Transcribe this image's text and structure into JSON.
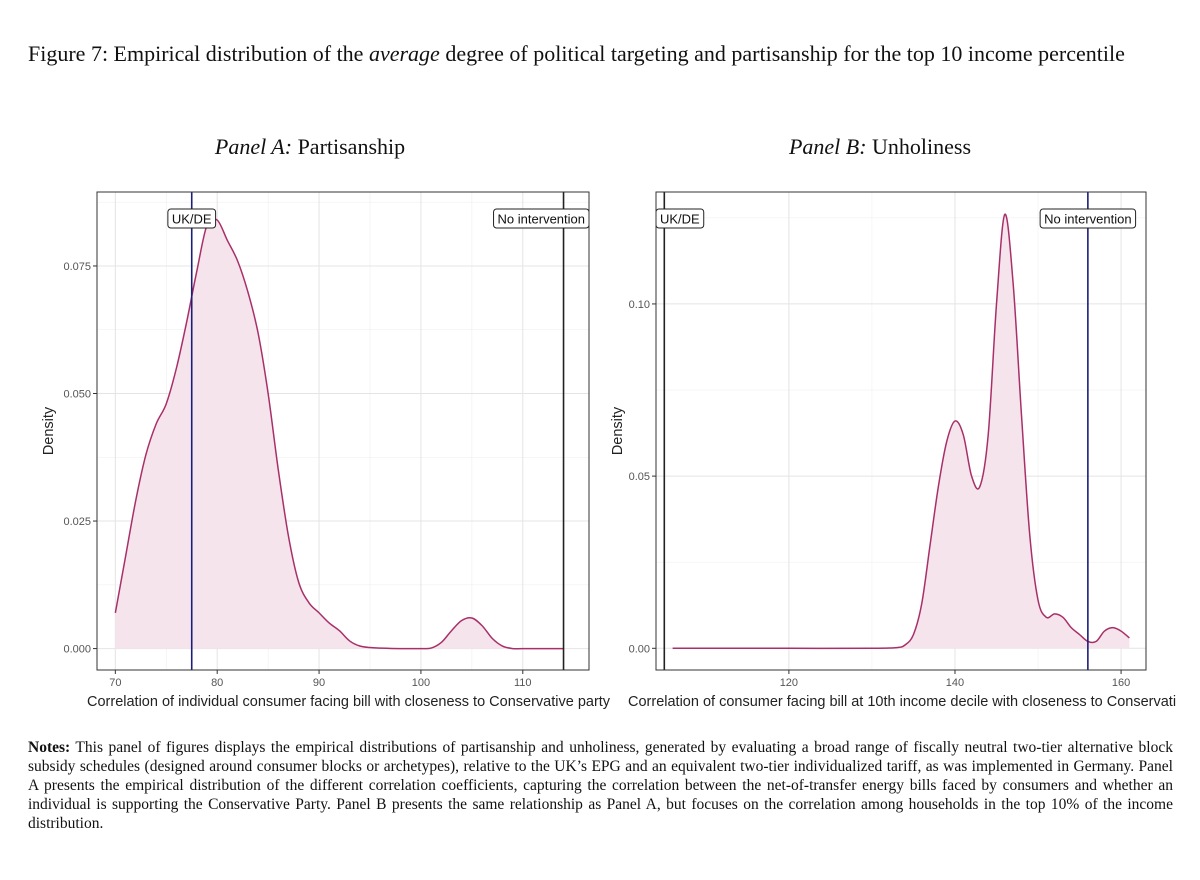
{
  "caption": {
    "prefix": "Figure 7: Empirical distribution of the ",
    "emph": "average",
    "suffix": " degree of political targeting and partisanship for the top 10 income percentile"
  },
  "panelA": {
    "label": "Panel A:",
    "title": "Partisanship"
  },
  "panelB": {
    "label": "Panel B:",
    "title": "Unholiness"
  },
  "notes": {
    "label": "Notes:",
    "text": " This panel of figures displays the empirical distributions of partisanship and unholiness, generated by evaluating a broad range of fiscally neutral two-tier alternative block subsidy schedules (designed around consumer blocks or archetypes), relative to the UK’s EPG and an equivalent two-tier individualized tariff, as was implemented in Germany.  Panel A presents the empirical distribution of the different correlation coefficients, capturing the correlation between the net-of-transfer energy bills faced by consumers and whether an individual is supporting the Conservative Party.  Panel B presents the same relationship as Panel A, but focuses on the correlation among households in the top 10% of the income distribution."
  },
  "chart_data": [
    {
      "type": "area",
      "title": "Panel A: Partisanship",
      "xlabel": "Correlation of individual consumer facing bill with closeness to Conservative party",
      "ylabel": "Density",
      "xlim": [
        68.2,
        116.5
      ],
      "ylim": [
        -0.0042,
        0.0895
      ],
      "xticks": [
        70,
        80,
        90,
        100,
        110
      ],
      "yticks": [
        0.0,
        0.025,
        0.05,
        0.075
      ],
      "ytick_labels": [
        "0.000",
        "0.025",
        "0.050",
        "0.075"
      ],
      "x": [
        70,
        71,
        72,
        73,
        74,
        75,
        76,
        77,
        78,
        79,
        80,
        81,
        82,
        83,
        84,
        85,
        86,
        87,
        88,
        89,
        90,
        91,
        92,
        93,
        94,
        95,
        96,
        98,
        100,
        101,
        102,
        103,
        104,
        105,
        106,
        107,
        108,
        109,
        110,
        112,
        114
      ],
      "y": [
        0.007,
        0.018,
        0.029,
        0.038,
        0.044,
        0.048,
        0.055,
        0.064,
        0.074,
        0.083,
        0.084,
        0.08,
        0.076,
        0.07,
        0.062,
        0.05,
        0.035,
        0.022,
        0.013,
        0.009,
        0.007,
        0.005,
        0.0035,
        0.0015,
        0.0005,
        0.0002,
        0.0001,
        0.0,
        0.0,
        0.0001,
        0.0012,
        0.0035,
        0.0055,
        0.006,
        0.0045,
        0.002,
        0.0005,
        0.0,
        0.0,
        0.0,
        0.0
      ],
      "line_color": "#a8306a",
      "fill_color": "#f5e4ec",
      "vlines": [
        {
          "x": 77.5,
          "label": "UK/DE",
          "color": "#1c1f7a"
        },
        {
          "x": 114,
          "label": "No intervention",
          "color": "#222222"
        }
      ]
    },
    {
      "type": "area",
      "title": "Panel B: Unholiness",
      "xlabel": "Correlation of consumer facing bill at 10th income decile with closeness to Conservati",
      "ylabel": "Density",
      "xlim": [
        104,
        163
      ],
      "ylim": [
        -0.0063,
        0.1325
      ],
      "xticks": [
        120,
        140,
        160
      ],
      "yticks": [
        0.0,
        0.05,
        0.1
      ],
      "ytick_labels": [
        "0.00",
        "0.05",
        "0.10"
      ],
      "x": [
        106,
        110,
        120,
        130,
        133,
        134,
        135,
        136,
        137,
        138,
        139,
        140,
        141,
        142,
        143,
        144,
        145,
        146,
        147,
        148,
        149,
        150,
        151,
        152,
        153,
        154,
        155,
        156,
        157,
        158,
        159,
        160,
        161
      ],
      "y": [
        0.0,
        0.0,
        0.0,
        0.0,
        0.0002,
        0.001,
        0.004,
        0.013,
        0.03,
        0.047,
        0.06,
        0.066,
        0.062,
        0.05,
        0.047,
        0.062,
        0.1,
        0.126,
        0.106,
        0.068,
        0.033,
        0.014,
        0.009,
        0.01,
        0.009,
        0.006,
        0.004,
        0.002,
        0.002,
        0.005,
        0.006,
        0.005,
        0.003
      ],
      "line_color": "#a8306a",
      "fill_color": "#f5e4ec",
      "vlines": [
        {
          "x": 105,
          "label": "UK/DE",
          "color": "#222222"
        },
        {
          "x": 156,
          "label": "No intervention",
          "color": "#1c1f7a"
        }
      ]
    }
  ]
}
